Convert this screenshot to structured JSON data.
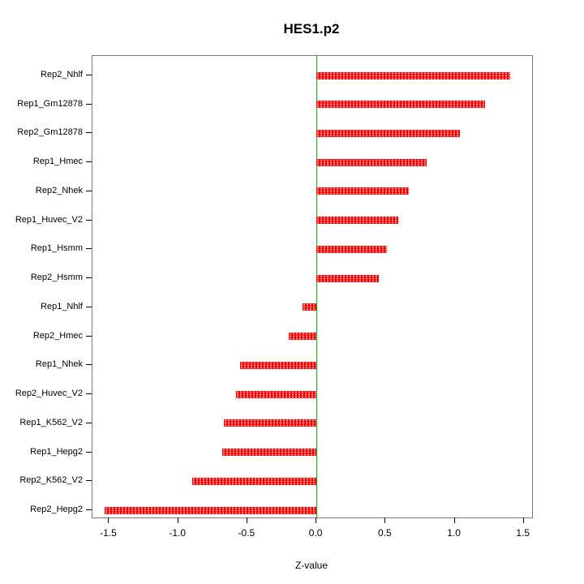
{
  "title": "HES1.p2",
  "chart_data": {
    "type": "bar",
    "orientation": "horizontal",
    "title": "HES1.p2",
    "xlabel": "Z-value",
    "ylabel": "",
    "categories": [
      "Rep2_Nhlf",
      "Rep1_Gm12878",
      "Rep2_Gm12878",
      "Rep1_Hmec",
      "Rep2_Nhek",
      "Rep1_Huvec_V2",
      "Rep1_Hsmm",
      "Rep2_Hsmm",
      "Rep1_Nhlf",
      "Rep2_Hmec",
      "Rep1_Nhek",
      "Rep2_Huvec_V2",
      "Rep1_K562_V2",
      "Rep1_Hepg2",
      "Rep2_K562_V2",
      "Rep2_Hepg2"
    ],
    "values": [
      1.4,
      1.22,
      1.04,
      0.8,
      0.67,
      0.59,
      0.51,
      0.45,
      -0.1,
      -0.2,
      -0.55,
      -0.58,
      -0.67,
      -0.68,
      -0.9,
      -1.53
    ],
    "xlim": [
      -1.62,
      1.56
    ],
    "xticks": [
      -1.5,
      -1.0,
      -0.5,
      0.0,
      0.5,
      1.0,
      1.5
    ],
    "xtick_labels": [
      "-1.5",
      "-1.0",
      "-0.5",
      "0.0",
      "0.5",
      "1.0",
      "1.5"
    ],
    "bar_color": "#ff0000",
    "zero_line_color": "#00c000",
    "grid": false,
    "legend": false
  }
}
